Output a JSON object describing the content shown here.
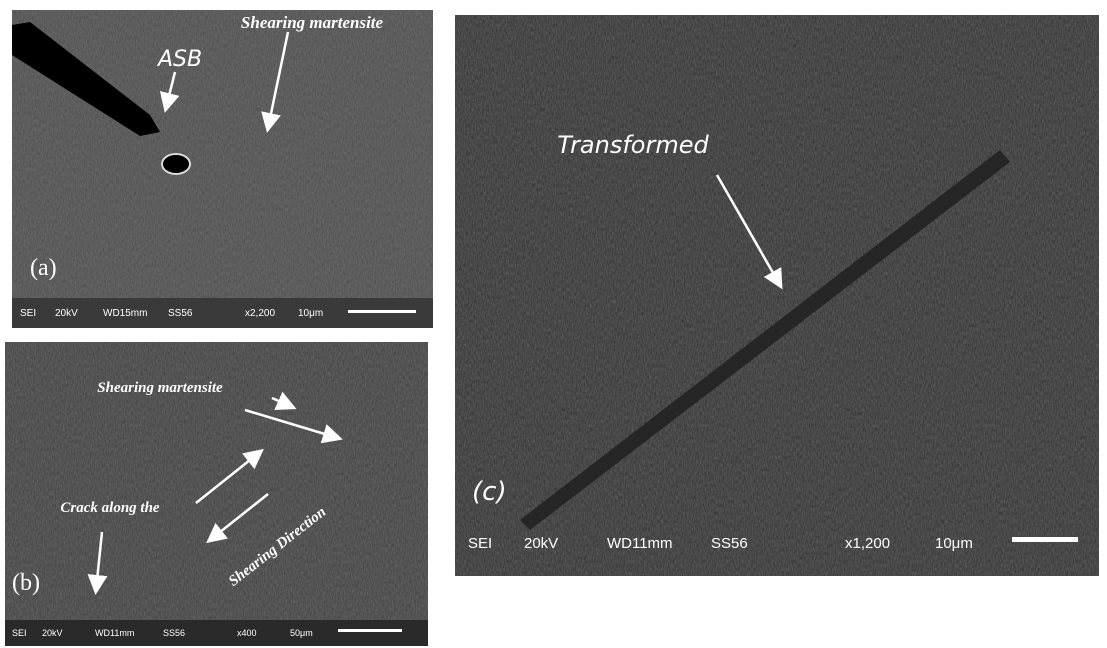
{
  "panels": [
    {
      "label": "(a)",
      "annotations": [
        "ASB",
        "Shearing martensite"
      ],
      "info_bar": [
        "SEI",
        "20kV",
        "WD15mm",
        "SS56",
        "x2,200",
        "10μm"
      ]
    },
    {
      "label": "(b)",
      "annotations": [
        "Shearing martensite",
        "Crack along the",
        "Shearing Direction"
      ],
      "info_bar": [
        "SEI",
        "20kV",
        "WD11mm",
        "SS56",
        "x400",
        "50μm"
      ]
    },
    {
      "label": "(c)",
      "annotations": [
        "Transformed"
      ],
      "info_bar": [
        "SEI",
        "20kV",
        "WD11mm",
        "SS56",
        "x1,200",
        "10μm"
      ]
    }
  ]
}
